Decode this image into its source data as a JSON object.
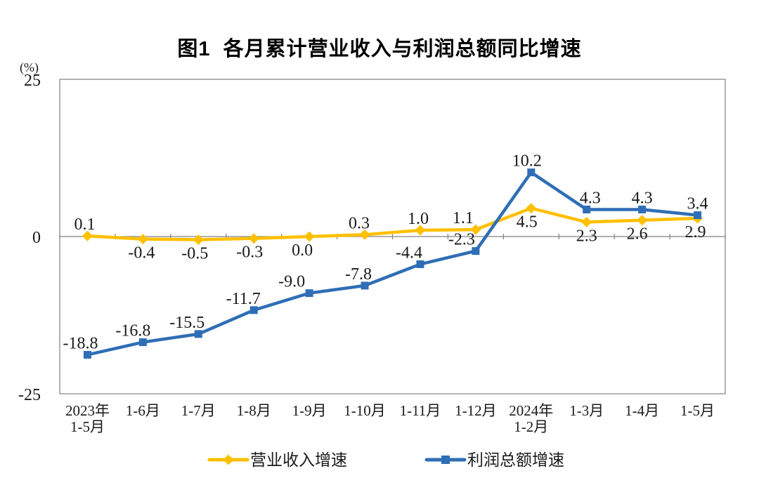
{
  "header": {
    "title": "图1  各月累计营业收入与利润总额同比增速"
  },
  "chart_data": {
    "type": "line",
    "title": "图1  各月累计营业收入与利润总额同比增速",
    "unit_label": "(%)",
    "categories": [
      "2023年\n1-5月",
      "1-6月",
      "1-7月",
      "1-8月",
      "1-9月",
      "1-10月",
      "1-11月",
      "1-12月",
      "2024年\n1-2月",
      "1-3月",
      "1-4月",
      "1-5月"
    ],
    "series": [
      {
        "id": "revenue",
        "name": "营业收入增速",
        "color": "#FFC000",
        "marker": "diamond",
        "values": [
          0.1,
          -0.4,
          -0.5,
          -0.3,
          0.0,
          0.3,
          1.0,
          1.1,
          4.5,
          2.3,
          2.6,
          2.9
        ],
        "label_positions": [
          "above",
          "below",
          "below",
          "below",
          "below",
          "above",
          "above",
          "above",
          "below",
          "below",
          "below",
          "below"
        ],
        "label_dx": [
          -4,
          -2,
          -5,
          -6,
          -10,
          -8,
          -3,
          -18,
          -6,
          0,
          -7,
          -3
        ]
      },
      {
        "id": "profit",
        "name": "利润总额增速",
        "color": "#2F6EB6",
        "marker": "square",
        "values": [
          -18.8,
          -16.8,
          -15.5,
          -11.7,
          -9.0,
          -7.8,
          -4.4,
          -2.3,
          10.2,
          4.3,
          4.3,
          3.4
        ],
        "label_positions": [
          "above",
          "above",
          "above",
          "above",
          "above",
          "above",
          "above",
          "above",
          "above",
          "above",
          "above",
          "above"
        ],
        "label_dx": [
          -10,
          -14,
          -16,
          -15,
          -25,
          -9,
          -16,
          -20,
          -6,
          5,
          0,
          0
        ]
      }
    ],
    "ylim": [
      -25,
      25
    ],
    "yticks": [
      25,
      0,
      -25
    ],
    "axis_color": "#808080",
    "text_color": "#1a1a1a",
    "grid": "zero-baseline-only",
    "legend_position": "bottom-center"
  }
}
